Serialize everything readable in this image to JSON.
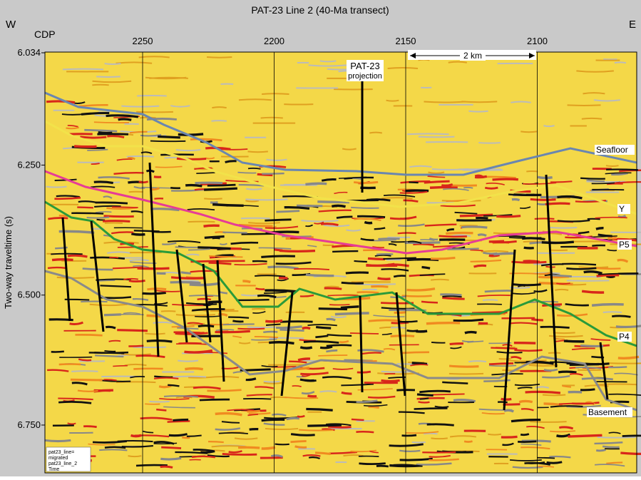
{
  "figure": {
    "title": "PAT-23 Line 2 (40-Ma transect)",
    "west": "W",
    "east": "E",
    "x_axis": {
      "label": "CDP",
      "ticks": [
        2250,
        2200,
        2150,
        2100
      ]
    },
    "y_axis": {
      "label": "Two-way traveltime (s)",
      "ticks": [
        6.034,
        {
          "value": 6.25,
          "label": "6.250"
        },
        {
          "value": 6.5,
          "label": "6.500"
        },
        {
          "value": 6.75,
          "label": "6.750"
        }
      ]
    },
    "annotations": {
      "site": "PAT-23",
      "site_sub": "projection",
      "scale": "2 km"
    },
    "horizons": [
      "Seafloor",
      "Y",
      "P5",
      "P4",
      "Basement"
    ],
    "legend_lines": [
      "pat23_line=",
      "migrated",
      "pat23_line_2",
      "Time"
    ]
  }
}
